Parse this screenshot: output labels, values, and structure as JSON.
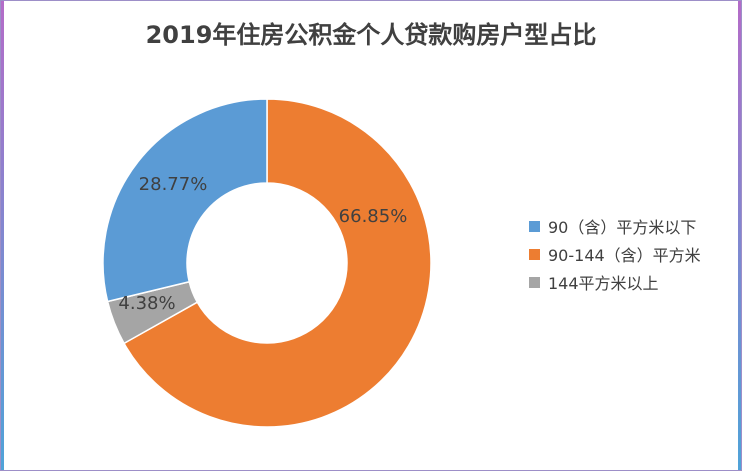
{
  "chart_data": {
    "type": "pie",
    "title": "2019年住房公积金个人贷款购房户型占比",
    "categories": [
      "90（含）平方米以下",
      "90-144（含）平方米",
      "144平方米以上"
    ],
    "values": [
      28.77,
      66.85,
      4.38
    ],
    "labels": [
      "28.77%",
      "66.85%",
      "4.38%"
    ],
    "colors": [
      "#5b9bd5",
      "#ed7d31",
      "#a5a5a5"
    ],
    "legend_position": "right",
    "style": "donut"
  }
}
